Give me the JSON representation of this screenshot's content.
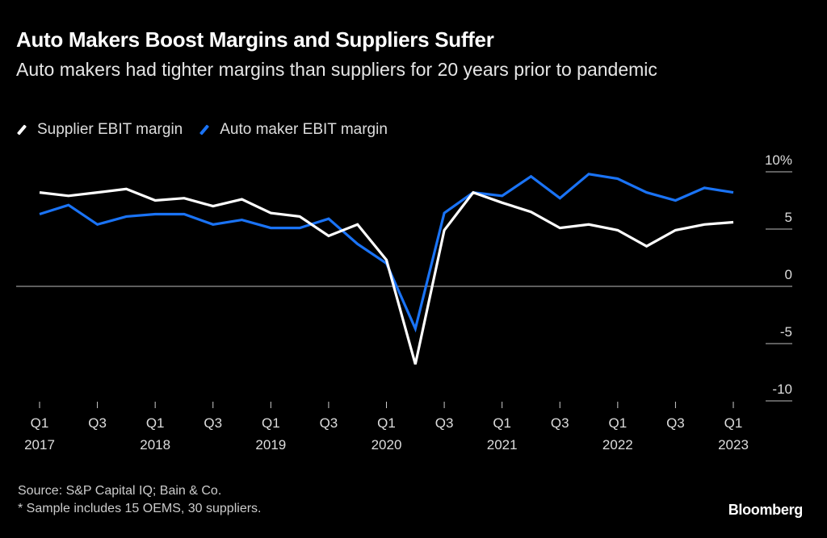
{
  "header": {
    "title": "Auto Makers Boost Margins and Suppliers Suffer",
    "subtitle": "Auto makers had tighter margins than suppliers for 20 years prior to pandemic"
  },
  "legend": [
    {
      "label": "Supplier EBIT margin",
      "color": "#ffffff"
    },
    {
      "label": "Auto maker EBIT margin",
      "color": "#1a73f5"
    }
  ],
  "footer": {
    "source": "Source: S&P Capital IQ; Bain & Co.",
    "note": "* Sample includes 15 OEMS, 30 suppliers.",
    "brand": "Bloomberg"
  },
  "chart_data": {
    "type": "line",
    "title": "Auto Makers Boost Margins and Suppliers Suffer",
    "subtitle": "Auto makers had tighter margins than suppliers for 20 years prior to pandemic",
    "xlabel": "",
    "ylabel": "",
    "x": [
      "Q1 2017",
      "Q2 2017",
      "Q3 2017",
      "Q4 2017",
      "Q1 2018",
      "Q2 2018",
      "Q3 2018",
      "Q4 2018",
      "Q1 2019",
      "Q2 2019",
      "Q3 2019",
      "Q4 2019",
      "Q1 2020",
      "Q2 2020",
      "Q3 2020",
      "Q4 2020",
      "Q1 2021",
      "Q2 2021",
      "Q3 2021",
      "Q4 2021",
      "Q1 2022",
      "Q2 2022",
      "Q3 2022",
      "Q4 2022",
      "Q1 2023"
    ],
    "series": [
      {
        "name": "Supplier EBIT margin",
        "color": "#ffffff",
        "values": [
          8.2,
          7.9,
          8.2,
          8.5,
          7.5,
          7.7,
          7.0,
          7.6,
          6.4,
          6.1,
          4.4,
          5.4,
          2.3,
          -6.8,
          4.9,
          8.2,
          7.3,
          6.5,
          5.1,
          5.4,
          4.9,
          3.5,
          4.9,
          5.4,
          5.6
        ]
      },
      {
        "name": "Auto maker EBIT margin",
        "color": "#1a73f5",
        "values": [
          6.3,
          7.1,
          5.4,
          6.1,
          6.3,
          6.3,
          5.4,
          5.8,
          5.1,
          5.1,
          5.9,
          3.7,
          2.0,
          -3.7,
          6.4,
          8.2,
          7.9,
          9.6,
          7.7,
          9.8,
          9.4,
          8.2,
          7.5,
          8.6,
          8.2
        ]
      }
    ],
    "x_ticks": [
      {
        "index": 0,
        "q": "Q1",
        "year": "2017"
      },
      {
        "index": 2,
        "q": "Q3",
        "year": ""
      },
      {
        "index": 4,
        "q": "Q1",
        "year": "2018"
      },
      {
        "index": 6,
        "q": "Q3",
        "year": ""
      },
      {
        "index": 8,
        "q": "Q1",
        "year": "2019"
      },
      {
        "index": 10,
        "q": "Q3",
        "year": ""
      },
      {
        "index": 12,
        "q": "Q1",
        "year": "2020"
      },
      {
        "index": 14,
        "q": "Q3",
        "year": ""
      },
      {
        "index": 16,
        "q": "Q1",
        "year": "2021"
      },
      {
        "index": 18,
        "q": "Q3",
        "year": ""
      },
      {
        "index": 20,
        "q": "Q1",
        "year": "2022"
      },
      {
        "index": 22,
        "q": "Q3",
        "year": ""
      },
      {
        "index": 24,
        "q": "Q1",
        "year": "2023"
      }
    ],
    "y_ticks": [
      {
        "value": 10,
        "label": "10%"
      },
      {
        "value": 5,
        "label": "5"
      },
      {
        "value": 0,
        "label": "0"
      },
      {
        "value": -5,
        "label": "-5"
      },
      {
        "value": -10,
        "label": "-10"
      }
    ],
    "ylim": [
      -10,
      10
    ],
    "axis_position": "right",
    "grid": false,
    "zero_line": true,
    "legend_position": "top-left"
  }
}
